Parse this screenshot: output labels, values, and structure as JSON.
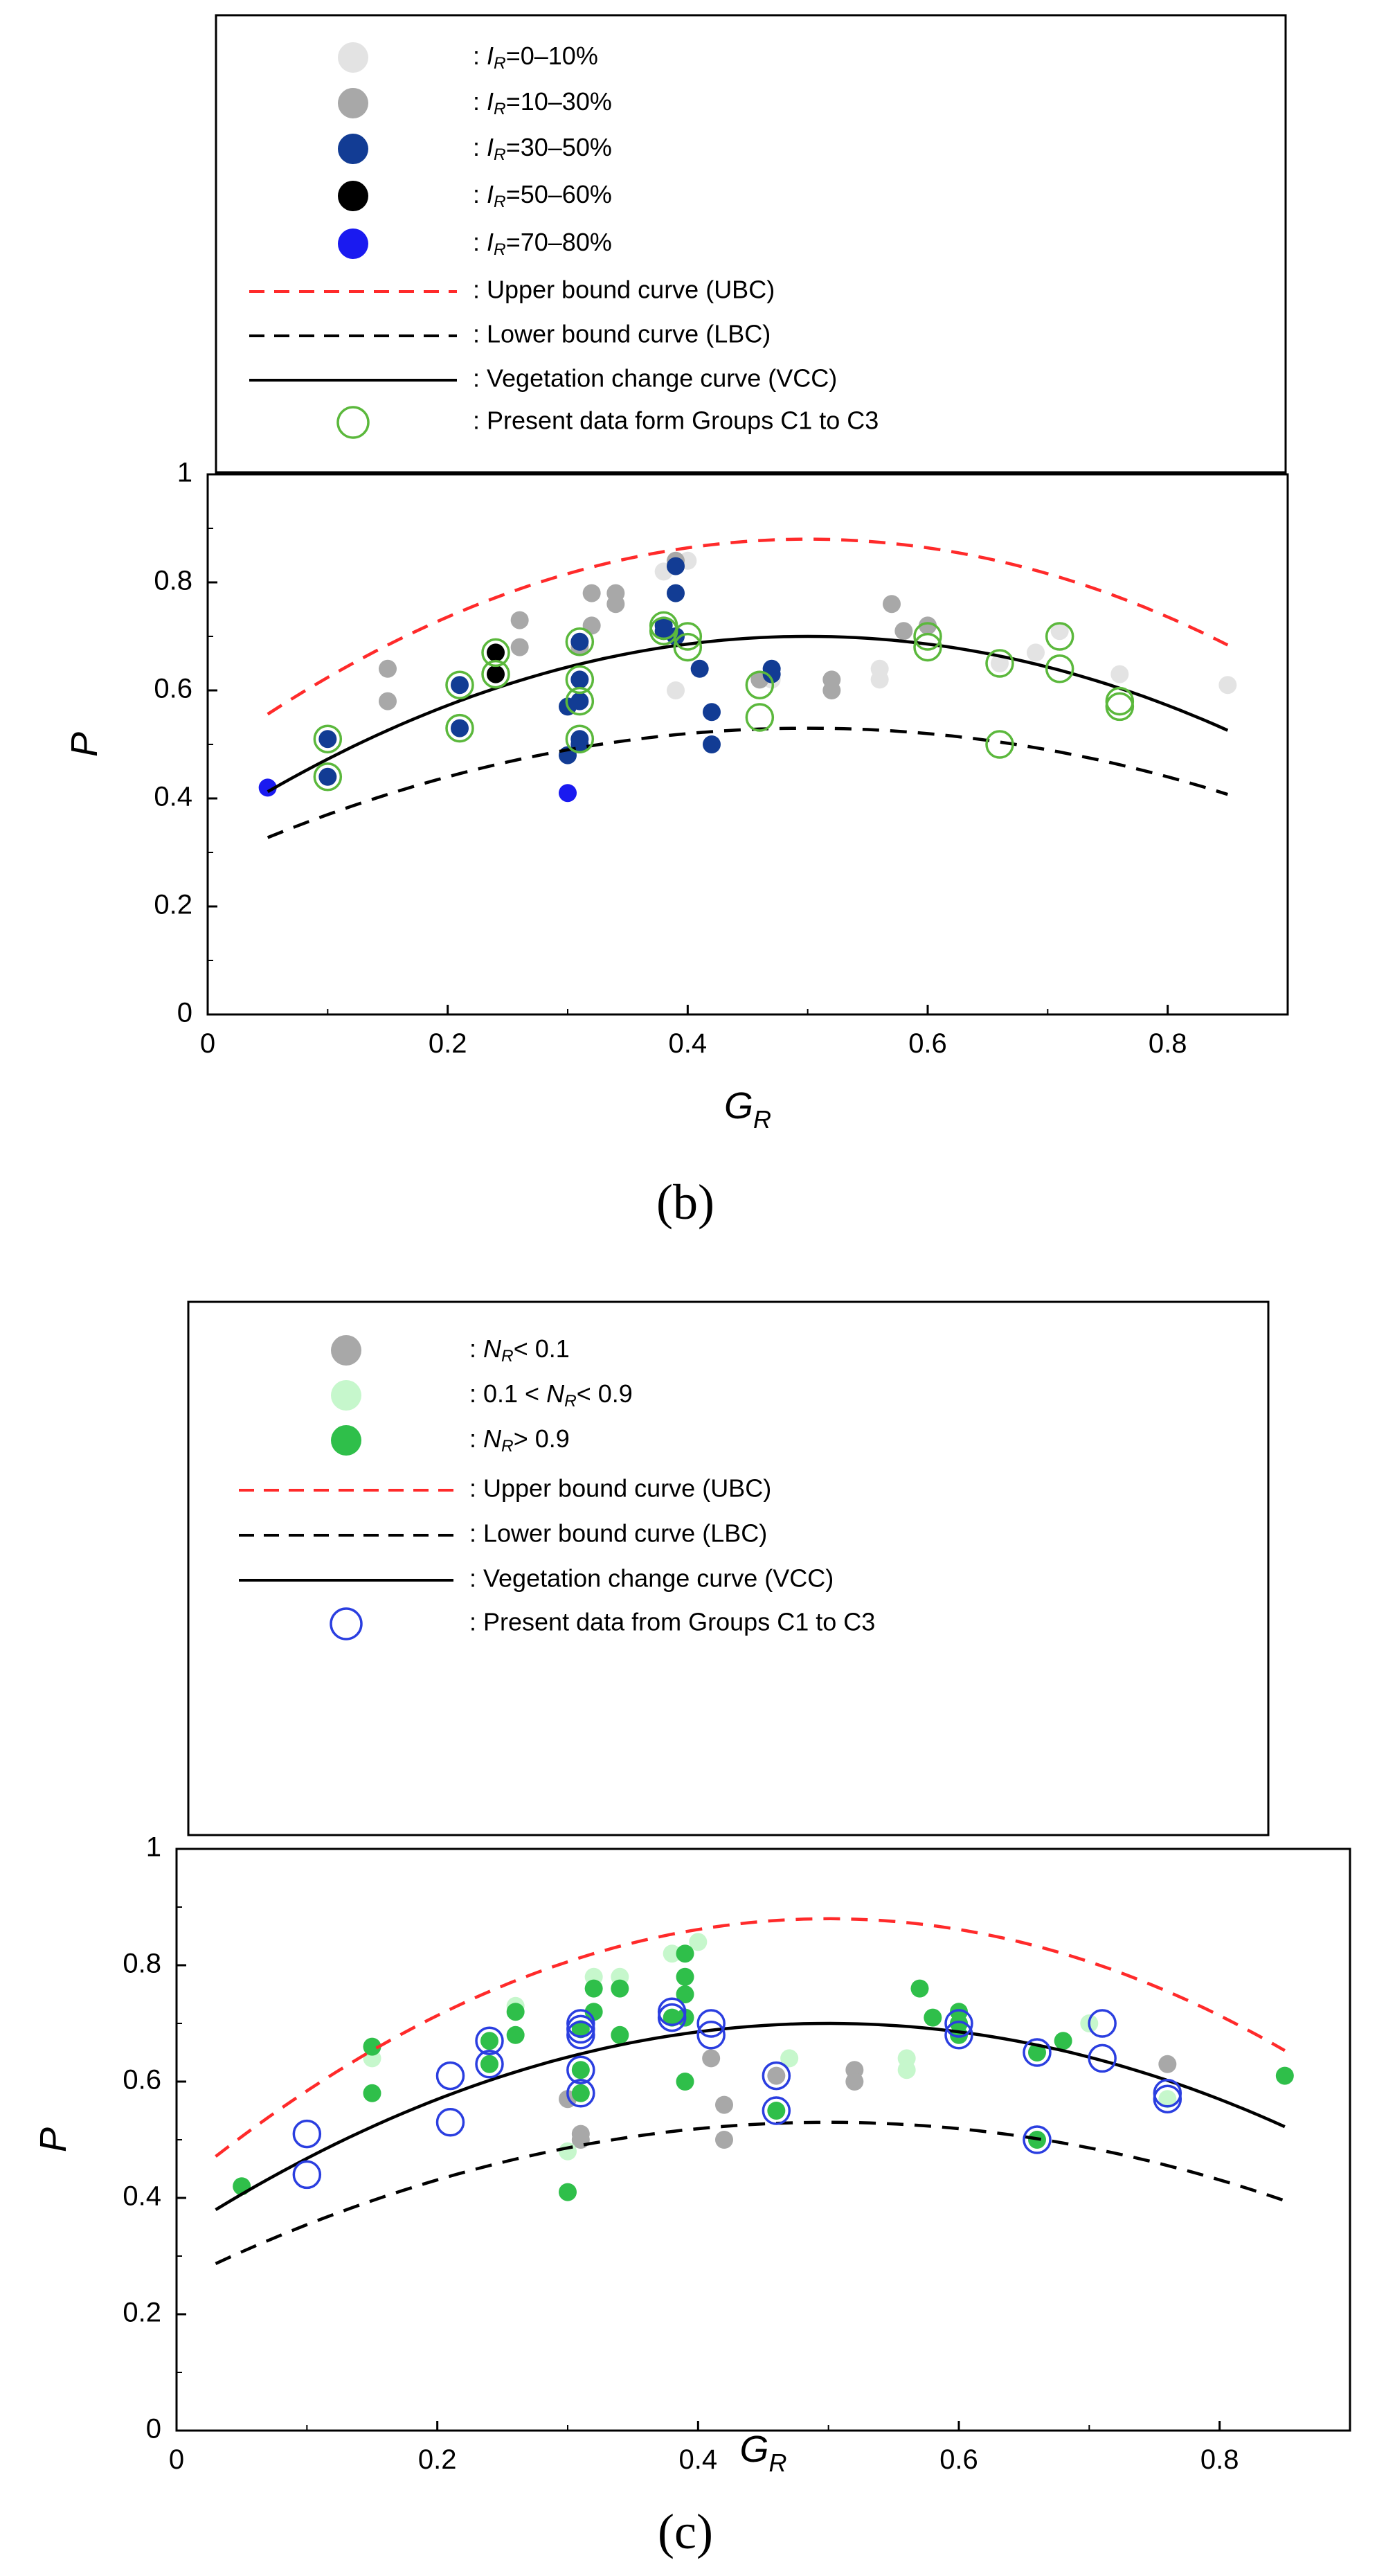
{
  "chart_data": [
    {
      "panel": "(b)",
      "type": "scatter",
      "xlabel": "G",
      "xlabel_sub": "R",
      "ylabel": "P",
      "xlim": [
        0,
        0.9
      ],
      "ylim": [
        0,
        1
      ],
      "xticks": [
        "0",
        "0.2",
        "0.4",
        "0.6",
        "0.8"
      ],
      "yticks": [
        "0",
        "0.2",
        "0.4",
        "0.6",
        "0.8",
        "1"
      ],
      "legend": [
        {
          "marker": "dot",
          "color": "#e3e3e3",
          "var": "I",
          "sub": "R",
          "suffix": "=0–10%"
        },
        {
          "marker": "dot",
          "color": "#a8a8a8",
          "var": "I",
          "sub": "R",
          "suffix": "=10–30%"
        },
        {
          "marker": "dot",
          "color": "#123c94",
          "var": "I",
          "sub": "R",
          "suffix": "=30–50%"
        },
        {
          "marker": "dot",
          "color": "#000000",
          "var": "I",
          "sub": "R",
          "suffix": "=50–60%"
        },
        {
          "marker": "dot",
          "color": "#1a1af0",
          "var": "I",
          "sub": "R",
          "suffix": "=70–80%"
        },
        {
          "marker": "dash",
          "color": "#ff2a2a",
          "prefix": ": Upper bound curve (UBC)"
        },
        {
          "marker": "dash",
          "color": "#000000",
          "prefix": ": Lower bound curve (LBC)"
        },
        {
          "marker": "line",
          "color": "#000000",
          "prefix": ": Vegetation change curve (VCC)"
        },
        {
          "marker": "ring",
          "color": "#5bb83c",
          "prefix": ": Present data form Groups C1 to C3"
        }
      ],
      "curves": [
        {
          "name": "UBC",
          "color": "#ff2a2a",
          "dash": "dash",
          "a": -1.6,
          "vertex": 0.5,
          "peak": 0.88,
          "xmin": 0.05,
          "xmax": 0.85
        },
        {
          "name": "LBC",
          "color": "#000000",
          "dash": "dash",
          "a": -1.0,
          "vertex": 0.5,
          "peak": 0.53,
          "xmin": 0.05,
          "xmax": 0.85
        },
        {
          "name": "VCC",
          "color": "#000000",
          "dash": "solid",
          "a": -1.42,
          "vertex": 0.5,
          "peak": 0.7,
          "xmin": 0.05,
          "xmax": 0.85
        }
      ],
      "ring_color": "#5bb83c",
      "series": [
        {
          "name": "IR 0-10%",
          "color": "#e3e3e3",
          "points": [
            [
              0.38,
              0.82
            ],
            [
              0.4,
              0.84
            ],
            [
              0.39,
              0.6
            ],
            [
              0.56,
              0.64
            ],
            [
              0.56,
              0.62
            ],
            [
              0.66,
              0.65
            ],
            [
              0.69,
              0.67
            ],
            [
              0.76,
              0.63
            ],
            [
              0.85,
              0.61
            ],
            [
              0.6,
              0.72
            ],
            [
              0.71,
              0.71
            ],
            [
              0.47,
              0.62
            ]
          ]
        },
        {
          "name": "IR 10-30%",
          "color": "#a8a8a8",
          "points": [
            [
              0.15,
              0.64
            ],
            [
              0.15,
              0.58
            ],
            [
              0.26,
              0.73
            ],
            [
              0.26,
              0.68
            ],
            [
              0.31,
              0.68
            ],
            [
              0.32,
              0.78
            ],
            [
              0.32,
              0.72
            ],
            [
              0.34,
              0.78
            ],
            [
              0.34,
              0.76
            ],
            [
              0.39,
              0.84
            ],
            [
              0.46,
              0.62
            ],
            [
              0.52,
              0.62
            ],
            [
              0.52,
              0.6
            ],
            [
              0.57,
              0.76
            ],
            [
              0.58,
              0.71
            ],
            [
              0.6,
              0.72
            ]
          ]
        },
        {
          "name": "IR 30-50%",
          "color": "#123c94",
          "points": [
            [
              0.1,
              0.51
            ],
            [
              0.1,
              0.44
            ],
            [
              0.21,
              0.61
            ],
            [
              0.21,
              0.53
            ],
            [
              0.3,
              0.57
            ],
            [
              0.3,
              0.48
            ],
            [
              0.31,
              0.69
            ],
            [
              0.31,
              0.62
            ],
            [
              0.31,
              0.58
            ],
            [
              0.31,
              0.51
            ],
            [
              0.31,
              0.5
            ],
            [
              0.38,
              0.72
            ],
            [
              0.38,
              0.71
            ],
            [
              0.39,
              0.83
            ],
            [
              0.39,
              0.78
            ],
            [
              0.39,
              0.7
            ],
            [
              0.41,
              0.64
            ],
            [
              0.42,
              0.56
            ],
            [
              0.42,
              0.5
            ],
            [
              0.47,
              0.64
            ],
            [
              0.47,
              0.63
            ]
          ]
        },
        {
          "name": "IR 50-60%",
          "color": "#000000",
          "points": [
            [
              0.24,
              0.67
            ],
            [
              0.24,
              0.63
            ]
          ]
        },
        {
          "name": "IR 70-80%",
          "color": "#1a1af0",
          "points": [
            [
              0.05,
              0.42
            ],
            [
              0.3,
              0.41
            ]
          ]
        }
      ],
      "rings": [
        [
          0.1,
          0.51
        ],
        [
          0.1,
          0.44
        ],
        [
          0.21,
          0.61
        ],
        [
          0.21,
          0.53
        ],
        [
          0.24,
          0.67
        ],
        [
          0.24,
          0.63
        ],
        [
          0.31,
          0.69
        ],
        [
          0.31,
          0.62
        ],
        [
          0.31,
          0.58
        ],
        [
          0.31,
          0.51
        ],
        [
          0.38,
          0.72
        ],
        [
          0.38,
          0.71
        ],
        [
          0.4,
          0.7
        ],
        [
          0.4,
          0.68
        ],
        [
          0.46,
          0.61
        ],
        [
          0.46,
          0.55
        ],
        [
          0.6,
          0.7
        ],
        [
          0.6,
          0.68
        ],
        [
          0.66,
          0.65
        ],
        [
          0.66,
          0.5
        ],
        [
          0.71,
          0.7
        ],
        [
          0.71,
          0.64
        ],
        [
          0.76,
          0.58
        ],
        [
          0.76,
          0.57
        ]
      ]
    },
    {
      "panel": "(c)",
      "type": "scatter",
      "xlabel": "G",
      "xlabel_sub": "R",
      "ylabel": "P",
      "xlim": [
        0,
        0.9
      ],
      "ylim": [
        0,
        1
      ],
      "xticks": [
        "0",
        "0.2",
        "0.4",
        "0.6",
        "0.8"
      ],
      "yticks": [
        "0",
        "0.2",
        "0.4",
        "0.6",
        "0.8",
        "1"
      ],
      "legend": [
        {
          "marker": "dot",
          "color": "#a8a8a8",
          "prefix": ": ",
          "var": "N",
          "sub": "R",
          "suffix": "< 0.1"
        },
        {
          "marker": "dot",
          "color": "#c6f7cc",
          "prefix": ": 0.1 < ",
          "var": "N",
          "sub": "R",
          "suffix": "< 0.9"
        },
        {
          "marker": "dot",
          "color": "#2fbf4a",
          "prefix": ": ",
          "var": "N",
          "sub": "R",
          "suffix": "> 0.9"
        },
        {
          "marker": "dash",
          "color": "#ff2a2a",
          "prefix": ": Upper bound curve (UBC)"
        },
        {
          "marker": "dash",
          "color": "#000000",
          "prefix": ": Lower bound curve (LBC)"
        },
        {
          "marker": "line",
          "color": "#000000",
          "prefix": ": Vegetation change curve (VCC)"
        },
        {
          "marker": "ring",
          "color": "#2a3ee0",
          "prefix": ": Present data from Groups C1 to C3"
        }
      ],
      "curves": [
        {
          "name": "UBC",
          "color": "#ff2a2a",
          "dash": "dash",
          "a": -1.85,
          "vertex": 0.5,
          "peak": 0.88,
          "xmin": 0.03,
          "xmax": 0.85
        },
        {
          "name": "LBC",
          "color": "#000000",
          "dash": "dash",
          "a": -1.1,
          "vertex": 0.5,
          "peak": 0.53,
          "xmin": 0.03,
          "xmax": 0.85
        },
        {
          "name": "VCC",
          "color": "#000000",
          "dash": "solid",
          "a": -1.45,
          "vertex": 0.5,
          "peak": 0.7,
          "xmin": 0.03,
          "xmax": 0.85
        }
      ],
      "ring_color": "#2a3ee0",
      "series": [
        {
          "name": "NR < 0.1",
          "color": "#a8a8a8",
          "points": [
            [
              0.3,
              0.57
            ],
            [
              0.31,
              0.51
            ],
            [
              0.31,
              0.5
            ],
            [
              0.41,
              0.64
            ],
            [
              0.42,
              0.56
            ],
            [
              0.42,
              0.5
            ],
            [
              0.46,
              0.61
            ],
            [
              0.52,
              0.62
            ],
            [
              0.52,
              0.6
            ],
            [
              0.76,
              0.63
            ]
          ]
        },
        {
          "name": "0.1 < NR < 0.9",
          "color": "#c6f7cc",
          "points": [
            [
              0.15,
              0.64
            ],
            [
              0.26,
              0.73
            ],
            [
              0.3,
              0.48
            ],
            [
              0.32,
              0.78
            ],
            [
              0.34,
              0.78
            ],
            [
              0.38,
              0.82
            ],
            [
              0.4,
              0.84
            ],
            [
              0.47,
              0.64
            ],
            [
              0.56,
              0.64
            ],
            [
              0.56,
              0.62
            ],
            [
              0.6,
              0.72
            ],
            [
              0.7,
              0.7
            ],
            [
              0.76,
              0.57
            ]
          ]
        },
        {
          "name": "NR > 0.9",
          "color": "#2fbf4a",
          "points": [
            [
              0.05,
              0.42
            ],
            [
              0.15,
              0.66
            ],
            [
              0.15,
              0.58
            ],
            [
              0.24,
              0.67
            ],
            [
              0.24,
              0.63
            ],
            [
              0.26,
              0.72
            ],
            [
              0.26,
              0.68
            ],
            [
              0.3,
              0.41
            ],
            [
              0.31,
              0.69
            ],
            [
              0.31,
              0.62
            ],
            [
              0.31,
              0.58
            ],
            [
              0.32,
              0.76
            ],
            [
              0.32,
              0.72
            ],
            [
              0.34,
              0.76
            ],
            [
              0.34,
              0.68
            ],
            [
              0.38,
              0.71
            ],
            [
              0.39,
              0.82
            ],
            [
              0.39,
              0.78
            ],
            [
              0.39,
              0.75
            ],
            [
              0.39,
              0.71
            ],
            [
              0.39,
              0.6
            ],
            [
              0.46,
              0.55
            ],
            [
              0.57,
              0.76
            ],
            [
              0.58,
              0.71
            ],
            [
              0.6,
              0.72
            ],
            [
              0.6,
              0.7
            ],
            [
              0.6,
              0.68
            ],
            [
              0.66,
              0.65
            ],
            [
              0.66,
              0.5
            ],
            [
              0.68,
              0.67
            ],
            [
              0.85,
              0.61
            ]
          ]
        }
      ],
      "rings": [
        [
          0.1,
          0.51
        ],
        [
          0.1,
          0.44
        ],
        [
          0.21,
          0.61
        ],
        [
          0.21,
          0.53
        ],
        [
          0.24,
          0.67
        ],
        [
          0.24,
          0.63
        ],
        [
          0.31,
          0.7
        ],
        [
          0.31,
          0.69
        ],
        [
          0.31,
          0.68
        ],
        [
          0.31,
          0.62
        ],
        [
          0.31,
          0.58
        ],
        [
          0.38,
          0.72
        ],
        [
          0.38,
          0.71
        ],
        [
          0.41,
          0.7
        ],
        [
          0.41,
          0.68
        ],
        [
          0.46,
          0.61
        ],
        [
          0.46,
          0.55
        ],
        [
          0.6,
          0.7
        ],
        [
          0.6,
          0.68
        ],
        [
          0.66,
          0.65
        ],
        [
          0.66,
          0.5
        ],
        [
          0.71,
          0.7
        ],
        [
          0.71,
          0.64
        ],
        [
          0.76,
          0.58
        ],
        [
          0.76,
          0.57
        ]
      ]
    }
  ]
}
